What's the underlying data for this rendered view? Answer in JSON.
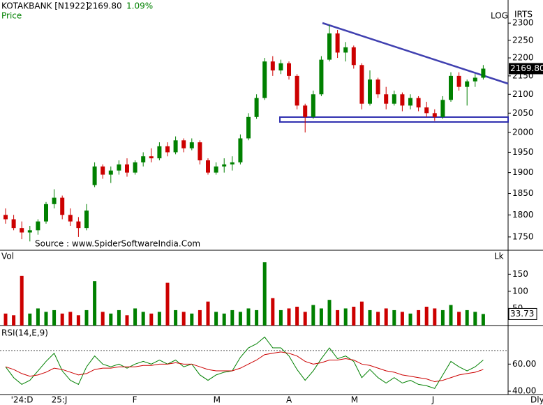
{
  "chart_data": [
    {
      "type": "candlestick",
      "title": "KOTAKBANK [N1922]",
      "last_price": "2169.80",
      "change": "1.09%",
      "label": "Price",
      "source": "Source : www.SpiderSoftwareIndia.Com",
      "scale_label": "LOG",
      "corner_label": "IRTS",
      "log_scale": true,
      "up_color": "#008000",
      "down_color": "#cc0000",
      "categories": [
        null,
        "'24:D",
        null,
        null,
        null,
        null,
        "25:J",
        null,
        null,
        null,
        null,
        null,
        null,
        null,
        null,
        null,
        "F",
        null,
        null,
        null,
        null,
        null,
        null,
        null,
        null,
        null,
        "M",
        null,
        null,
        null,
        null,
        null,
        null,
        null,
        null,
        "A",
        null,
        null,
        null,
        null,
        null,
        null,
        null,
        "M",
        null,
        null,
        null,
        null,
        null,
        null,
        null,
        null,
        null,
        "J",
        null,
        null,
        null,
        null,
        null,
        null
      ],
      "open": [
        1800,
        1790,
        1770,
        1760,
        1765,
        1785,
        1825,
        1840,
        1800,
        1785,
        1770,
        1870,
        1915,
        1895,
        1905,
        1920,
        1900,
        1925,
        1940,
        1935,
        1965,
        1950,
        1980,
        1960,
        1975,
        1930,
        1900,
        1915,
        1920,
        1925,
        1985,
        2040,
        2090,
        2190,
        2165,
        2185,
        2150,
        2070,
        2040,
        2100,
        2195,
        2270,
        2215,
        2230,
        2180,
        2075,
        2140,
        2100,
        2075,
        2100,
        2070,
        2090,
        2065,
        2050,
        2040,
        2085,
        2150,
        2120,
        2135,
        2145
      ],
      "high": [
        1815,
        1800,
        1785,
        1775,
        1790,
        1830,
        1860,
        1845,
        1815,
        1795,
        1825,
        1925,
        1920,
        1915,
        1930,
        1935,
        1930,
        1950,
        1960,
        1975,
        1975,
        1990,
        1985,
        1985,
        1980,
        1935,
        1925,
        1935,
        1940,
        1995,
        2050,
        2100,
        2200,
        2205,
        2195,
        2190,
        2155,
        2075,
        2110,
        2205,
        2295,
        2280,
        2245,
        2235,
        2185,
        2165,
        2145,
        2120,
        2110,
        2105,
        2100,
        2095,
        2080,
        2060,
        2095,
        2160,
        2160,
        2140,
        2155,
        2180
      ],
      "low": [
        1780,
        1765,
        1745,
        1740,
        1755,
        1780,
        1815,
        1790,
        1775,
        1750,
        1765,
        1865,
        1885,
        1875,
        1895,
        1890,
        1895,
        1915,
        1925,
        1930,
        1940,
        1945,
        1950,
        1955,
        1920,
        1895,
        1895,
        1900,
        1905,
        1920,
        1980,
        2035,
        2085,
        2150,
        2155,
        2140,
        2060,
        2000,
        2035,
        2095,
        2190,
        2200,
        2190,
        2170,
        2060,
        2070,
        2090,
        2060,
        2070,
        2055,
        2060,
        2055,
        2040,
        2030,
        2035,
        2080,
        2110,
        2070,
        2120,
        2140
      ],
      "close": [
        1790,
        1770,
        1760,
        1765,
        1785,
        1825,
        1840,
        1800,
        1785,
        1770,
        1810,
        1915,
        1895,
        1905,
        1920,
        1900,
        1925,
        1940,
        1935,
        1965,
        1950,
        1980,
        1960,
        1975,
        1930,
        1900,
        1915,
        1920,
        1925,
        1985,
        2040,
        2090,
        2190,
        2165,
        2185,
        2150,
        2070,
        2040,
        2100,
        2195,
        2270,
        2215,
        2230,
        2180,
        2075,
        2140,
        2100,
        2075,
        2100,
        2070,
        2090,
        2065,
        2050,
        2040,
        2085,
        2150,
        2120,
        2135,
        2145,
        2170
      ],
      "ylim": [
        1722,
        2369
      ],
      "yticks": [
        1750,
        1800,
        1850,
        1900,
        1950,
        2000,
        2050,
        2100,
        2150,
        2200,
        2250,
        2300
      ],
      "x_label": "Dly"
    },
    {
      "type": "bar",
      "label": "Vol",
      "unit_label": "Lk",
      "values": [
        35,
        30,
        145,
        35,
        50,
        40,
        45,
        35,
        40,
        30,
        45,
        130,
        40,
        35,
        45,
        30,
        50,
        40,
        35,
        40,
        125,
        45,
        40,
        35,
        45,
        70,
        40,
        35,
        45,
        40,
        50,
        45,
        185,
        80,
        45,
        50,
        55,
        40,
        60,
        50,
        75,
        45,
        50,
        55,
        70,
        45,
        40,
        50,
        45,
        40,
        35,
        45,
        55,
        50,
        45,
        60,
        40,
        45,
        40,
        33.73
      ],
      "last_value": "33.73",
      "ylim": [
        0,
        218
      ],
      "yticks": [
        50,
        100,
        150
      ]
    },
    {
      "type": "line",
      "label": "RSI(14,E,9)",
      "reference": 70,
      "series": [
        {
          "color": "#008000",
          "values": [
            58,
            50,
            45,
            48,
            55,
            62,
            68,
            55,
            48,
            45,
            58,
            66,
            60,
            58,
            60,
            57,
            60,
            62,
            60,
            63,
            60,
            63,
            58,
            60,
            52,
            48,
            52,
            54,
            55,
            65,
            72,
            75,
            80,
            72,
            72,
            66,
            56,
            48,
            55,
            64,
            72,
            64,
            66,
            62,
            50,
            56,
            50,
            46,
            50,
            46,
            48,
            45,
            44,
            42,
            52,
            62,
            58,
            55,
            58,
            63
          ]
        },
        {
          "color": "#cc0000",
          "values": [
            58,
            56,
            53,
            51,
            52,
            54,
            57,
            56,
            54,
            52,
            53,
            56,
            57,
            57,
            58,
            58,
            58,
            59,
            59,
            60,
            60,
            61,
            60,
            60,
            58,
            56,
            55,
            55,
            55,
            57,
            60,
            63,
            67,
            68,
            69,
            68,
            66,
            62,
            60,
            61,
            63,
            63,
            64,
            63,
            60,
            59,
            57,
            55,
            54,
            52,
            51,
            50,
            49,
            47,
            48,
            50,
            52,
            53,
            54,
            56
          ]
        }
      ],
      "ylim": [
        38,
        88
      ],
      "yticks": [
        {
          "value": 60,
          "label": "60.00"
        },
        {
          "value": 40,
          "label": "40.00"
        }
      ]
    }
  ]
}
